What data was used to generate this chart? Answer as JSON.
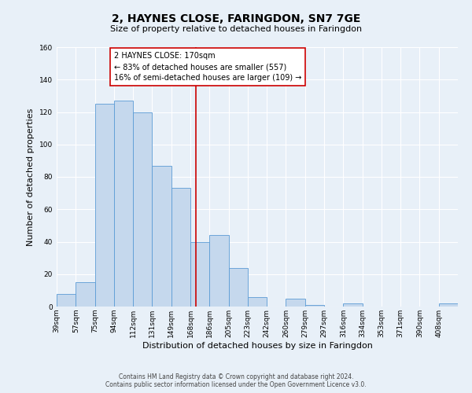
{
  "title": "2, HAYNES CLOSE, FARINGDON, SN7 7GE",
  "subtitle": "Size of property relative to detached houses in Faringdon",
  "xlabel": "Distribution of detached houses by size in Faringdon",
  "ylabel": "Number of detached properties",
  "bin_labels": [
    "39sqm",
    "57sqm",
    "75sqm",
    "94sqm",
    "112sqm",
    "131sqm",
    "149sqm",
    "168sqm",
    "186sqm",
    "205sqm",
    "223sqm",
    "242sqm",
    "260sqm",
    "279sqm",
    "297sqm",
    "316sqm",
    "334sqm",
    "353sqm",
    "371sqm",
    "390sqm",
    "408sqm"
  ],
  "bar_values": [
    8,
    15,
    125,
    127,
    120,
    87,
    73,
    40,
    44,
    24,
    6,
    0,
    5,
    1,
    0,
    2,
    0,
    0,
    0,
    0,
    2
  ],
  "bar_color": "#c5d8ed",
  "bar_edge_color": "#5b9bd5",
  "vline_color": "#cc0000",
  "vline_x": 170,
  "annotation_text": "2 HAYNES CLOSE: 170sqm\n← 83% of detached houses are smaller (557)\n16% of semi-detached houses are larger (109) →",
  "annotation_box_color": "#ffffff",
  "annotation_box_edge": "#cc0000",
  "ylim": [
    0,
    160
  ],
  "yticks": [
    0,
    20,
    40,
    60,
    80,
    100,
    120,
    140,
    160
  ],
  "footer1": "Contains HM Land Registry data © Crown copyright and database right 2024.",
  "footer2": "Contains public sector information licensed under the Open Government Licence v3.0.",
  "bg_color": "#e8f0f8",
  "plot_bg_color": "#e8f0f8",
  "title_fontsize": 10,
  "subtitle_fontsize": 8,
  "ylabel_fontsize": 8,
  "xlabel_fontsize": 8,
  "tick_fontsize": 6.5,
  "annotation_fontsize": 7,
  "footer_fontsize": 5.5
}
